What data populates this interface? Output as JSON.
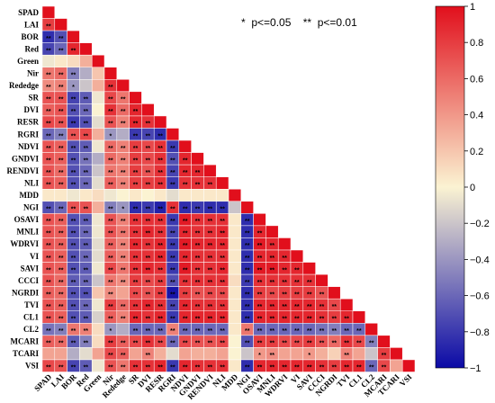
{
  "chart_data": {
    "type": "heatmap",
    "subtype": "lower-triangular correlation matrix",
    "variables": [
      "SPAD",
      "LAI",
      "BOR",
      "Red",
      "Green",
      "Nir",
      "Rededge",
      "SR",
      "DVI",
      "RESR",
      "RGRI",
      "NDVI",
      "GNDVI",
      "RENDVI",
      "NLI",
      "MDD",
      "NGI",
      "OSAVI",
      "MNLI",
      "WDRVI",
      "VI",
      "SAVI",
      "CCCI",
      "NGRDI",
      "TVI",
      "CL1",
      "CL2",
      "MCARI",
      "TCARI",
      "VSI"
    ],
    "significance_note": "*  p<=0.05    **  p<=0.01",
    "colorbar": {
      "min": -1,
      "max": 1,
      "ticks": [
        "1",
        "0.8",
        "0.6",
        "0.4",
        "0.2",
        "0",
        "−0.2",
        "−0.4",
        "−0.6",
        "−0.8",
        "−1"
      ],
      "colors": {
        "neg": "#0b0aa6",
        "mid": "#fbf3d2",
        "pos": "#e10f1c"
      }
    },
    "grid": false,
    "legend_position": "right",
    "matrix": [
      [
        1
      ],
      [
        0.8,
        1
      ],
      [
        -0.85,
        -0.7,
        1
      ],
      [
        -0.75,
        -0.6,
        0.9,
        1
      ],
      [
        -0.05,
        0.05,
        0.1,
        0.3,
        1
      ],
      [
        0.55,
        0.6,
        -0.5,
        -0.3,
        0.2,
        1
      ],
      [
        0.45,
        0.5,
        -0.4,
        -0.2,
        0.3,
        0.85,
        1
      ],
      [
        0.7,
        0.7,
        -0.75,
        -0.65,
        -0.05,
        0.75,
        0.55,
        1
      ],
      [
        0.65,
        0.7,
        -0.7,
        -0.6,
        0.0,
        0.85,
        0.6,
        0.9,
        1
      ],
      [
        0.75,
        0.7,
        -0.8,
        -0.7,
        -0.1,
        0.7,
        0.5,
        0.9,
        0.85,
        1
      ],
      [
        -0.6,
        -0.5,
        0.7,
        0.75,
        0.3,
        -0.4,
        -0.3,
        -0.8,
        -0.75,
        -0.85,
        1
      ],
      [
        0.7,
        0.65,
        -0.7,
        -0.65,
        -0.05,
        0.6,
        0.5,
        0.8,
        0.75,
        0.85,
        -0.8,
        1
      ],
      [
        0.7,
        0.65,
        -0.7,
        -0.55,
        -0.3,
        0.6,
        0.5,
        0.8,
        0.75,
        0.85,
        -0.7,
        0.9,
        1
      ],
      [
        0.7,
        0.6,
        -0.7,
        -0.6,
        -0.2,
        0.55,
        0.5,
        0.8,
        0.7,
        0.85,
        -0.75,
        0.9,
        0.9,
        1
      ],
      [
        0.7,
        0.65,
        -0.7,
        -0.6,
        -0.1,
        0.65,
        0.5,
        0.8,
        0.8,
        0.85,
        -0.8,
        0.85,
        0.85,
        0.85,
        1
      ],
      [
        0.05,
        0.05,
        -0.05,
        0.05,
        0.1,
        -0.05,
        0.0,
        0.05,
        0.0,
        0.05,
        -0.1,
        0.05,
        0.05,
        0.05,
        0.05,
        1
      ],
      [
        -0.7,
        -0.6,
        0.7,
        0.7,
        0.3,
        -0.5,
        -0.4,
        -0.85,
        -0.8,
        -0.9,
        0.85,
        -0.85,
        -0.8,
        -0.85,
        -0.85,
        -0.2,
        1
      ],
      [
        0.7,
        0.65,
        -0.7,
        -0.65,
        -0.05,
        0.7,
        0.5,
        0.85,
        0.85,
        0.85,
        -0.8,
        0.95,
        0.85,
        0.85,
        0.85,
        0.05,
        -0.85,
        1
      ],
      [
        0.7,
        0.65,
        -0.7,
        -0.6,
        -0.05,
        0.7,
        0.55,
        0.85,
        0.9,
        0.85,
        -0.75,
        0.9,
        0.85,
        0.85,
        0.9,
        0.05,
        -0.85,
        0.9,
        1
      ],
      [
        0.7,
        0.65,
        -0.7,
        -0.65,
        -0.1,
        0.65,
        0.5,
        0.9,
        0.85,
        0.9,
        -0.8,
        0.95,
        0.9,
        0.9,
        0.9,
        0.05,
        -0.85,
        0.95,
        0.9,
        1
      ],
      [
        0.7,
        0.65,
        -0.7,
        -0.6,
        -0.1,
        0.65,
        0.5,
        0.85,
        0.85,
        0.9,
        -0.8,
        0.9,
        0.85,
        0.85,
        0.85,
        0.05,
        -0.85,
        0.9,
        0.9,
        0.9,
        1
      ],
      [
        0.7,
        0.65,
        -0.7,
        -0.65,
        -0.05,
        0.75,
        0.55,
        0.85,
        0.9,
        0.85,
        -0.8,
        0.95,
        0.85,
        0.85,
        0.9,
        0.05,
        -0.85,
        0.95,
        0.95,
        0.9,
        0.9,
        1
      ],
      [
        0.7,
        0.6,
        -0.65,
        -0.6,
        -0.2,
        0.55,
        0.45,
        0.8,
        0.75,
        0.8,
        -0.7,
        0.85,
        0.85,
        0.85,
        0.85,
        0.1,
        -0.8,
        0.85,
        0.85,
        0.85,
        0.85,
        0.85,
        1
      ],
      [
        0.65,
        0.6,
        -0.7,
        -0.7,
        0.2,
        0.45,
        0.35,
        0.75,
        0.7,
        0.8,
        -0.95,
        0.8,
        0.7,
        0.75,
        0.75,
        0.05,
        -0.85,
        0.8,
        0.75,
        0.8,
        0.8,
        0.8,
        0.7,
        1
      ],
      [
        0.7,
        0.65,
        -0.7,
        -0.6,
        -0.05,
        0.8,
        0.6,
        0.85,
        0.9,
        0.85,
        -0.75,
        0.9,
        0.85,
        0.85,
        0.85,
        0.05,
        -0.85,
        0.9,
        0.9,
        0.9,
        0.9,
        0.9,
        0.85,
        0.75,
        1
      ],
      [
        0.7,
        0.65,
        -0.7,
        -0.65,
        -0.15,
        0.65,
        0.5,
        0.9,
        0.85,
        0.9,
        -0.8,
        0.9,
        0.9,
        0.9,
        0.9,
        0.05,
        -0.85,
        0.9,
        0.9,
        0.9,
        0.9,
        0.9,
        0.85,
        0.8,
        0.9,
        1
      ],
      [
        -0.55,
        -0.5,
        0.55,
        0.5,
        0.1,
        -0.4,
        -0.3,
        -0.6,
        -0.6,
        -0.6,
        0.5,
        -0.6,
        -0.6,
        -0.6,
        -0.6,
        0.05,
        0.55,
        -0.6,
        -0.6,
        -0.6,
        -0.6,
        -0.6,
        -0.55,
        -0.5,
        -0.6,
        -0.6,
        1
      ],
      [
        0.65,
        0.6,
        -0.65,
        -0.5,
        0.1,
        0.8,
        0.65,
        0.75,
        0.85,
        0.75,
        -0.6,
        0.75,
        0.7,
        0.7,
        0.75,
        0.0,
        -0.7,
        0.8,
        0.8,
        0.75,
        0.75,
        0.8,
        0.7,
        0.6,
        0.85,
        0.75,
        -0.5,
        1
      ],
      [
        0.35,
        0.35,
        -0.3,
        -0.1,
        0.35,
        0.75,
        0.65,
        0.35,
        0.5,
        0.3,
        -0.1,
        0.35,
        0.3,
        0.3,
        0.35,
        0.0,
        -0.2,
        0.4,
        0.45,
        0.35,
        0.35,
        0.4,
        0.3,
        0.15,
        0.5,
        0.35,
        -0.2,
        0.8,
        1
      ],
      [
        0.75,
        0.7,
        -0.75,
        -0.65,
        -0.05,
        0.7,
        0.55,
        0.85,
        0.85,
        0.9,
        -0.8,
        0.9,
        0.85,
        0.85,
        0.85,
        0.05,
        -0.85,
        0.9,
        0.9,
        0.9,
        0.9,
        0.9,
        0.85,
        0.8,
        0.9,
        0.9,
        -0.6,
        0.75,
        0.35,
        1
      ]
    ]
  }
}
